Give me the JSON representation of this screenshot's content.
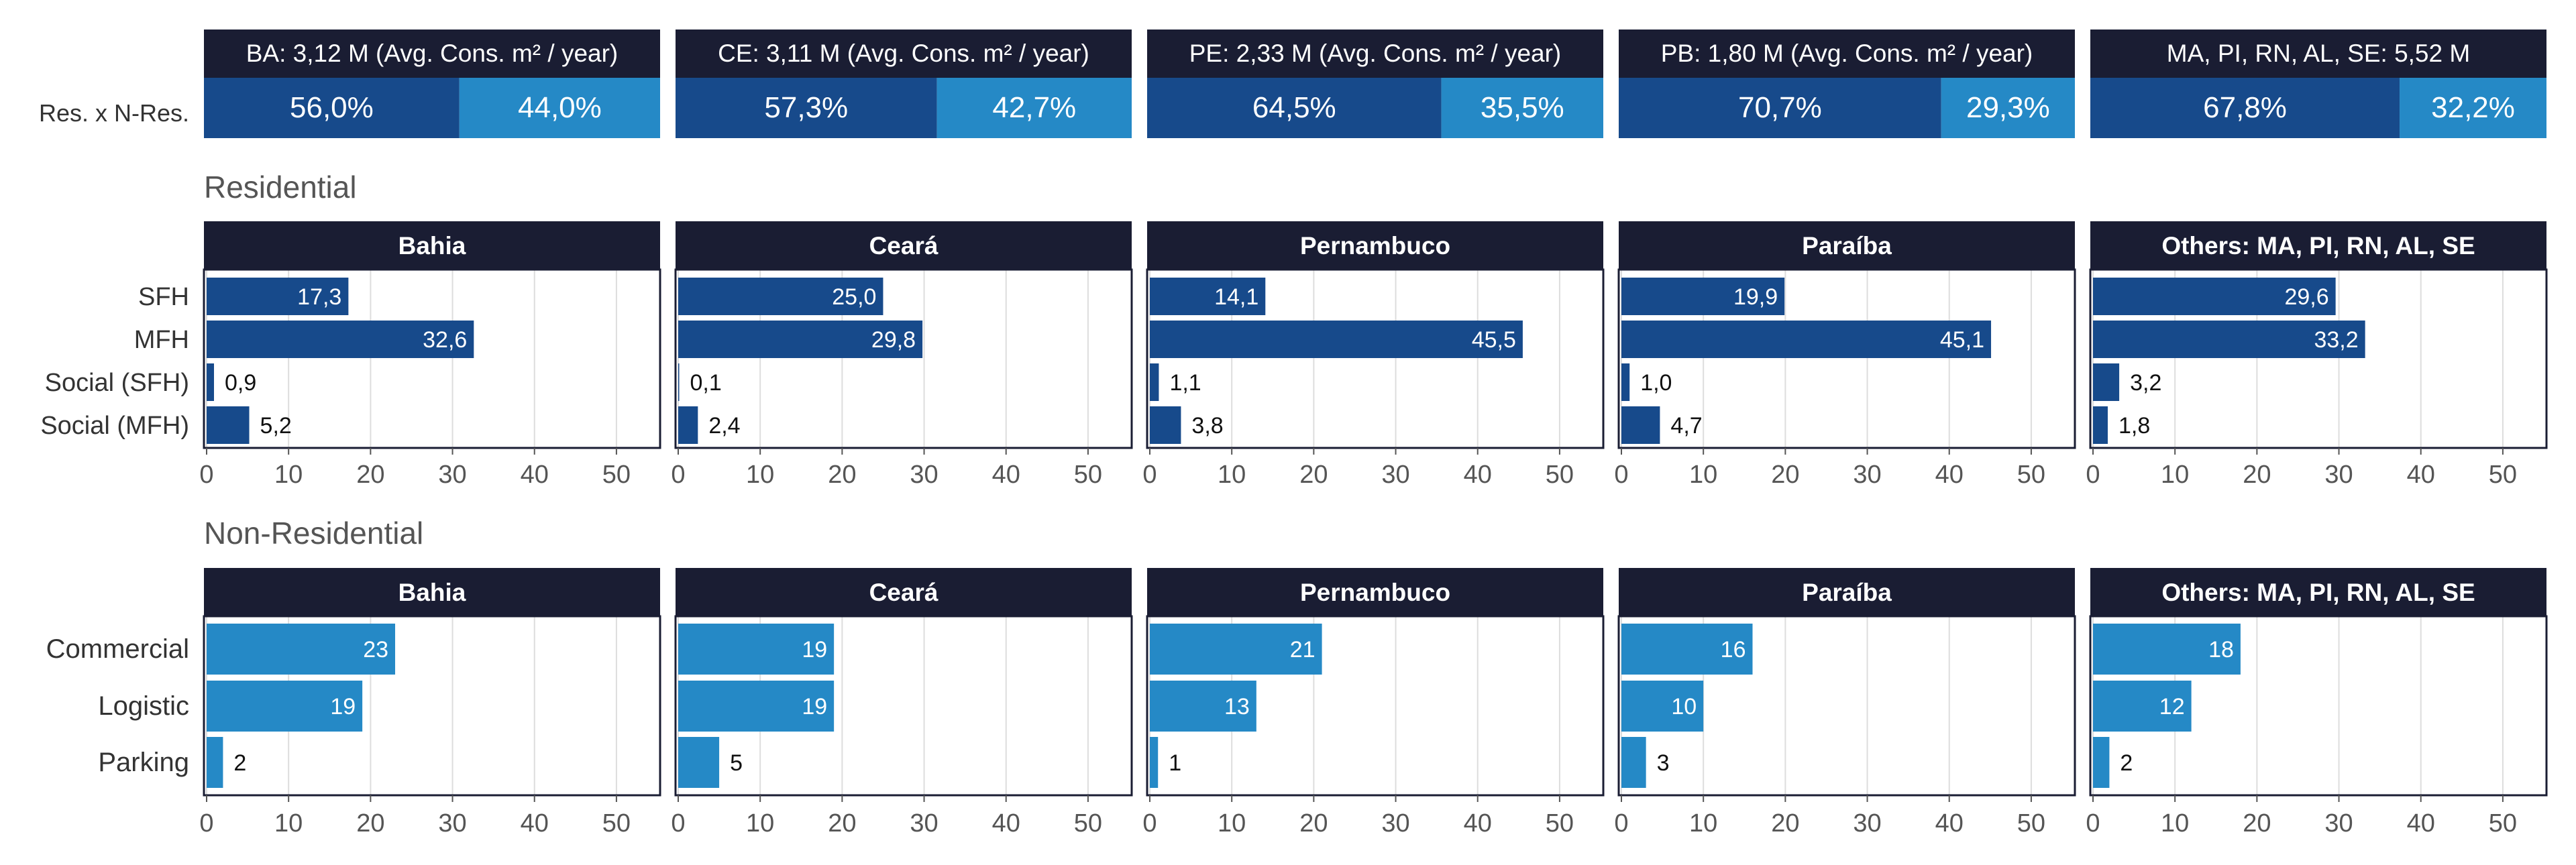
{
  "row_label": "Res. x N-Res.",
  "section_residential": "Residential",
  "section_nonresidential": "Non-Residential",
  "colors": {
    "dark": "#174a8b",
    "light": "#2589c6",
    "header_bg": "#1a1d33",
    "header_text": "#ffffff",
    "grid": "#dddddd"
  },
  "states": [
    {
      "header": "BA: 3,12 M (Avg. Cons. m² / year)",
      "res_pct": 56.0,
      "res_label": "56,0%",
      "nonres_pct": 44.0,
      "nonres_label": "44,0%"
    },
    {
      "header": "CE: 3,11 M (Avg. Cons. m² / year)",
      "res_pct": 57.3,
      "res_label": "57,3%",
      "nonres_pct": 42.7,
      "nonres_label": "42,7%"
    },
    {
      "header": "PE: 2,33 M (Avg. Cons. m² / year)",
      "res_pct": 64.5,
      "res_label": "64,5%",
      "nonres_pct": 35.5,
      "nonres_label": "35,5%"
    },
    {
      "header": "PB: 1,80 M (Avg. Cons. m² / year)",
      "res_pct": 70.7,
      "res_label": "70,7%",
      "nonres_pct": 29.3,
      "nonres_label": "29,3%"
    },
    {
      "header": "MA, PI, RN, AL, SE: 5,52 M",
      "res_pct": 67.8,
      "res_label": "67,8%",
      "nonres_pct": 32.2,
      "nonres_label": "32,2%"
    }
  ],
  "chart_data": [
    {
      "type": "bar",
      "orientation": "horizontal",
      "section": "Residential",
      "categories": [
        "SFH",
        "MFH",
        "Social (SFH)",
        "Social (MFH)"
      ],
      "xlim": [
        0,
        55
      ],
      "xticks": [
        "0",
        "10",
        "20",
        "30",
        "40",
        "50"
      ],
      "panels": [
        {
          "title": "Bahia",
          "values": [
            17.3,
            32.6,
            0.9,
            5.2
          ],
          "labels": [
            "17,3",
            "32,6",
            "0,9",
            "5,2"
          ]
        },
        {
          "title": "Ceará",
          "values": [
            25.0,
            29.8,
            0.1,
            2.4
          ],
          "labels": [
            "25,0",
            "29,8",
            "0,1",
            "2,4"
          ]
        },
        {
          "title": "Pernambuco",
          "values": [
            14.1,
            45.5,
            1.1,
            3.8
          ],
          "labels": [
            "14,1",
            "45,5",
            "1,1",
            "3,8"
          ]
        },
        {
          "title": "Paraíba",
          "values": [
            19.9,
            45.1,
            1.0,
            4.7
          ],
          "labels": [
            "19,9",
            "45,1",
            "1,0",
            "4,7"
          ]
        },
        {
          "title": "Others: MA, PI, RN, AL, SE",
          "values": [
            29.6,
            33.2,
            3.2,
            1.8
          ],
          "labels": [
            "29,6",
            "33,2",
            "3,2",
            "1,8"
          ]
        }
      ]
    },
    {
      "type": "bar",
      "orientation": "horizontal",
      "section": "Non-Residential",
      "categories": [
        "Commercial",
        "Logistic",
        "Parking"
      ],
      "xlim": [
        0,
        55
      ],
      "xticks": [
        "0",
        "10",
        "20",
        "30",
        "40",
        "50"
      ],
      "panels": [
        {
          "title": "Bahia",
          "values": [
            23,
            19,
            2
          ],
          "labels": [
            "23",
            "19",
            "2"
          ]
        },
        {
          "title": "Ceará",
          "values": [
            19,
            19,
            5
          ],
          "labels": [
            "19",
            "19",
            "5"
          ]
        },
        {
          "title": "Pernambuco",
          "values": [
            21,
            13,
            1
          ],
          "labels": [
            "21",
            "13",
            "1"
          ]
        },
        {
          "title": "Paraíba",
          "values": [
            16,
            10,
            3
          ],
          "labels": [
            "16",
            "10",
            "3"
          ]
        },
        {
          "title": "Others: MA, PI, RN, AL, SE",
          "values": [
            18,
            12,
            2
          ],
          "labels": [
            "18",
            "12",
            "2"
          ]
        }
      ]
    }
  ]
}
